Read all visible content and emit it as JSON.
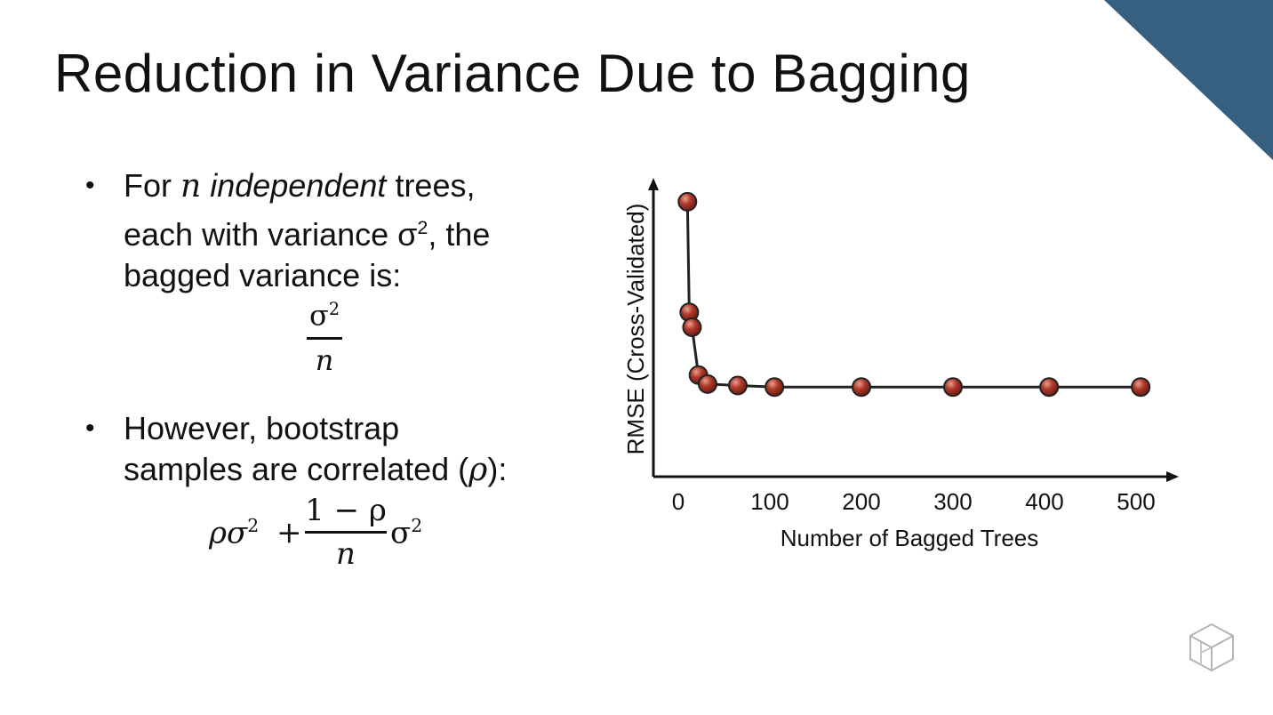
{
  "slide": {
    "title": "Reduction in Variance Due to Bagging",
    "accent_color": "#365f80",
    "bullet_symbol": "•",
    "bullet1": {
      "prefix": "For",
      "var": "n",
      "italic": "independent",
      "rest1": "trees,",
      "line2a": "each with variance σ",
      "line2sup": "2",
      "line2b": ", the",
      "line3": "bagged variance is:"
    },
    "formula1": {
      "numerator": "σ",
      "numerator_sup": "2",
      "denominator": "n"
    },
    "bullet2": {
      "line1": "However, bootstrap",
      "line2a": "samples are correlated (",
      "line2var": "ρ",
      "line2b": "):"
    },
    "formula2": {
      "term1": "ρσ",
      "term1_sup": "2",
      "plus": "+",
      "numerator": "1 − ρ",
      "denominator": "n",
      "term3": "σ",
      "term3_sup": "2"
    }
  },
  "chart_data": {
    "type": "line",
    "xlabel": "Number of Bagged Trees",
    "ylabel": "RMSE (Cross-Validated)",
    "x_ticks": [
      0,
      100,
      200,
      300,
      400,
      500
    ],
    "xlim": [
      0,
      500
    ],
    "y_ticks_shown": false,
    "grid": false,
    "series": [
      {
        "x": [
          10,
          12,
          15,
          22,
          32,
          65,
          105,
          200,
          300,
          405,
          505
        ],
        "y": [
          0.92,
          0.55,
          0.5,
          0.34,
          0.31,
          0.305,
          0.3,
          0.3,
          0.3,
          0.3,
          0.3
        ],
        "color": "#9a2e22"
      }
    ]
  }
}
